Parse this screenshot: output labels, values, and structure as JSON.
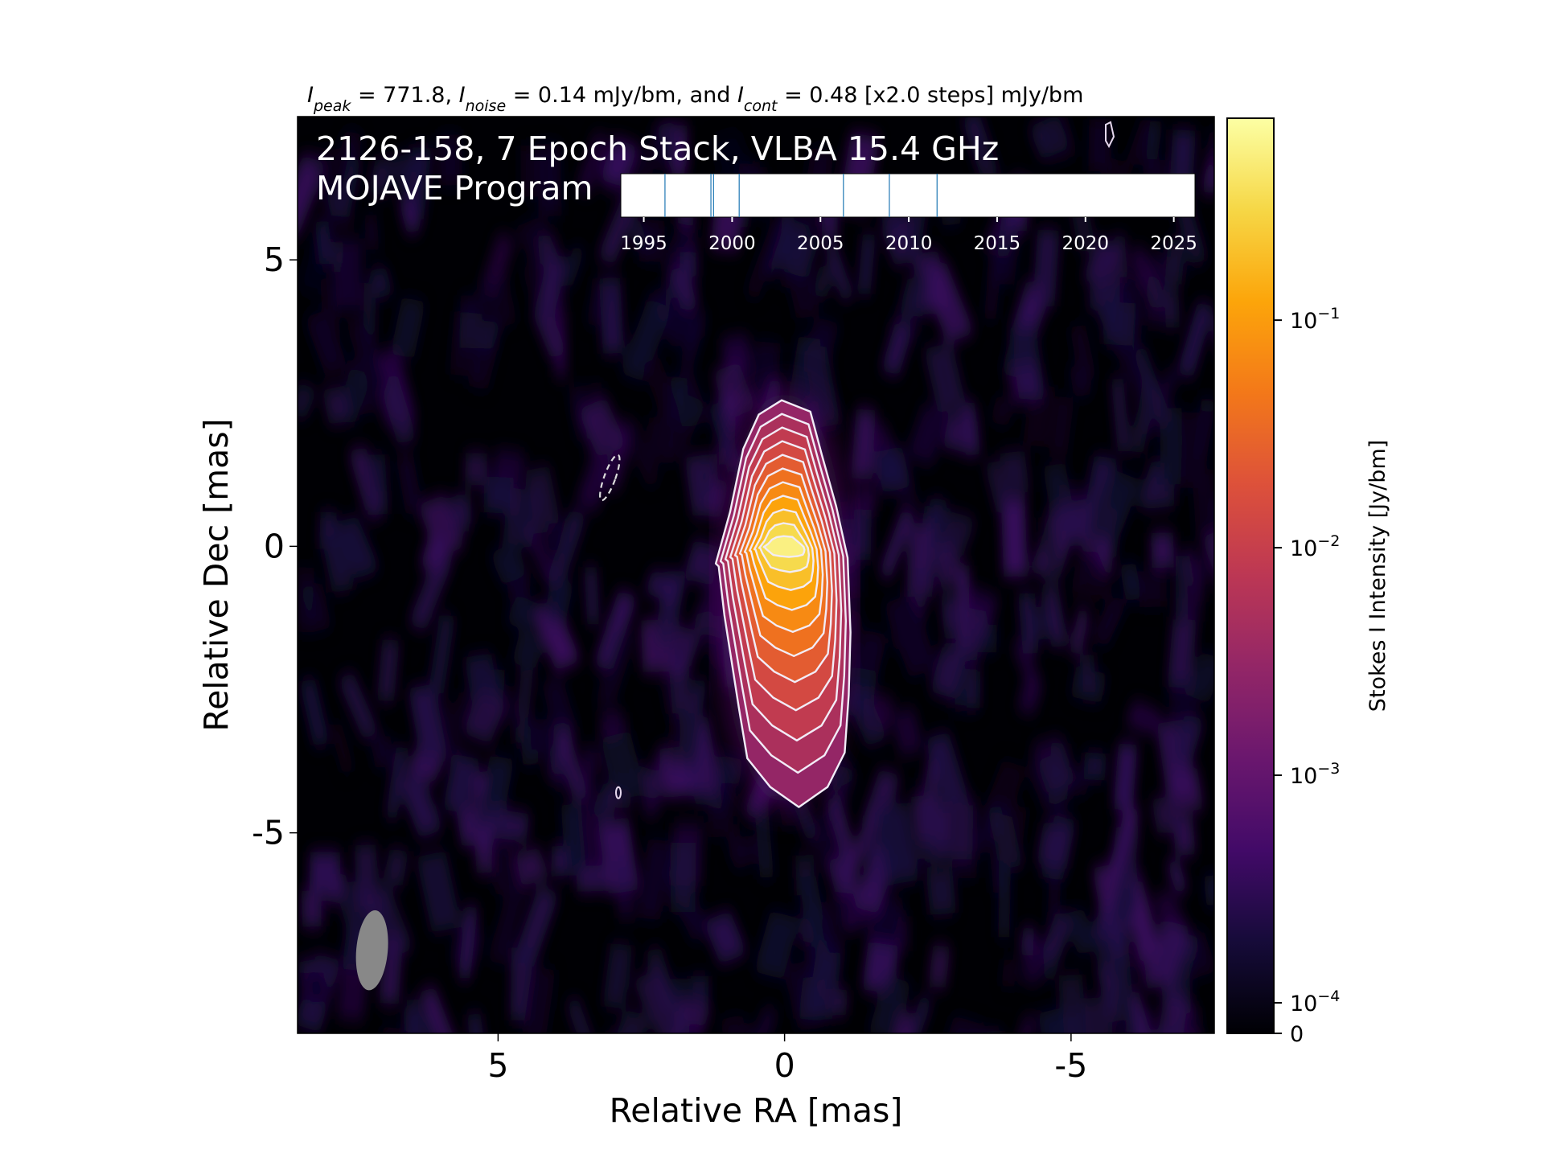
{
  "chart_data": {
    "type": "heatmap",
    "header": {
      "parts": [
        {
          "t": "I",
          "it": true
        },
        {
          "t": "peak",
          "it": true,
          "sub": true
        },
        {
          "t": " = 771.8, "
        },
        {
          "t": "I",
          "it": true
        },
        {
          "t": "noise",
          "it": true,
          "sub": true
        },
        {
          "t": " = 0.14 mJy/bm, and "
        },
        {
          "t": "I",
          "it": true
        },
        {
          "t": "cont",
          "it": true,
          "sub": true
        },
        {
          "t": " = 0.48 [x2.0 steps] mJy/bm"
        }
      ]
    },
    "title_line1": "2126-158, 7 Epoch Stack, VLBA 15.4 GHz",
    "title_line2": "MOJAVE Program",
    "xlabel": "Relative RA [mas]",
    "ylabel": "Relative Dec [mas]",
    "xlim": [
      8.5,
      -7.5
    ],
    "ylim": [
      -8.5,
      7.5
    ],
    "x_ticks": [
      {
        "v": 5,
        "label": "5"
      },
      {
        "v": 0,
        "label": "0"
      },
      {
        "v": -5,
        "label": "-5"
      }
    ],
    "y_ticks": [
      {
        "v": 5,
        "label": "5"
      },
      {
        "v": 0,
        "label": "0"
      },
      {
        "v": -5,
        "label": "-5"
      }
    ],
    "colormap": "inferno",
    "colorbar": {
      "label": "Stokes I Intensity [Jy/bm]",
      "scale": "log",
      "max": 0.7718,
      "ticks": [
        {
          "v": 0.1,
          "base": "10",
          "exp": "−1"
        },
        {
          "v": 0.01,
          "base": "10",
          "exp": "−2"
        },
        {
          "v": 0.001,
          "base": "10",
          "exp": "−3"
        },
        {
          "v": 0.0001,
          "base": "10",
          "exp": "−4"
        },
        {
          "v": 0,
          "base": "0",
          "exp": ""
        }
      ]
    },
    "source": {
      "ra": 0,
      "dec": 0,
      "peak_jy": 0.7718,
      "noise_mjy": 0.14,
      "contour_base_mjy": 0.48,
      "contour_step": 2.0
    },
    "contour_levels_mjy": [
      0.48,
      0.96,
      1.92,
      3.84,
      7.68,
      15.36,
      30.72,
      61.44,
      122.88,
      245.76,
      491.52
    ],
    "beam": {
      "ra": 7.2,
      "dec": -7.05,
      "major_mas": 1.4,
      "minor_mas": 0.55,
      "pa_deg": 5,
      "color": "#888888"
    },
    "epoch_inset": {
      "xlim": [
        1993.7,
        2026.2
      ],
      "ticks": [
        1995,
        2000,
        2005,
        2010,
        2015,
        2020,
        2025
      ],
      "epochs": [
        1996.2,
        1998.8,
        1998.95,
        2000.4,
        2006.3,
        2008.9,
        2011.6
      ],
      "line_color": "#1f77b4"
    }
  }
}
